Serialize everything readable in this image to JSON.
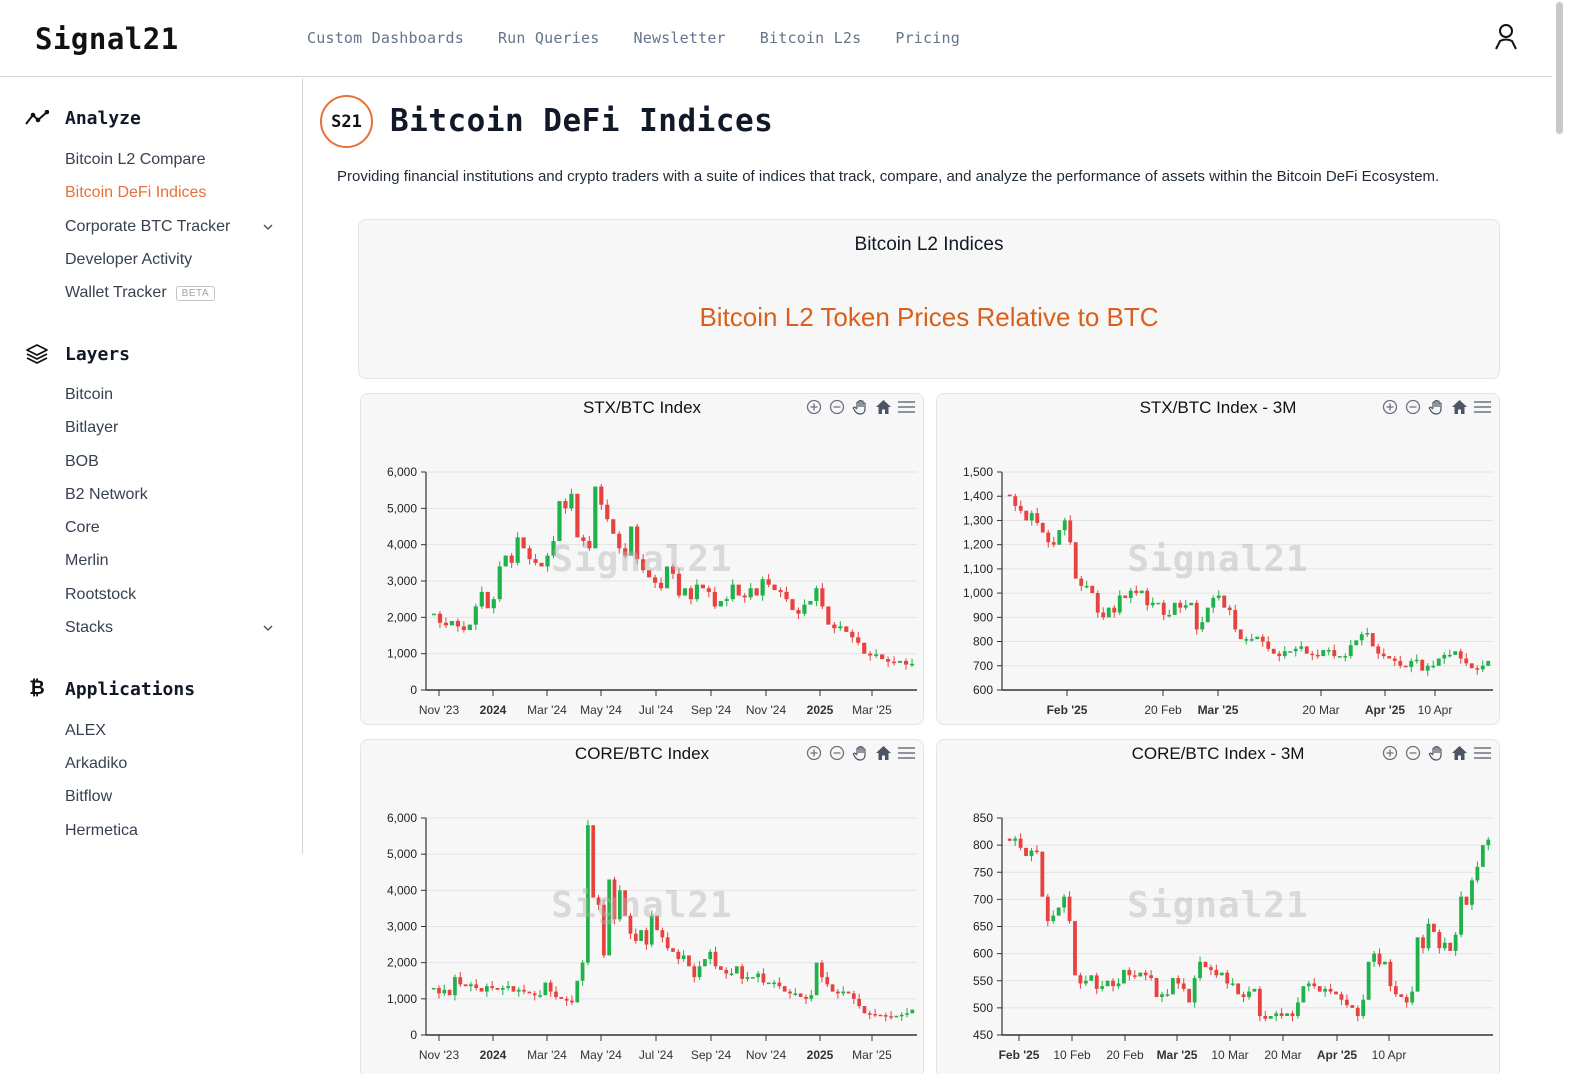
{
  "header": {
    "logo": "Signal21",
    "nav": [
      "Custom Dashboards",
      "Run Queries",
      "Newsletter",
      "Bitcoin L2s",
      "Pricing"
    ],
    "user_icon": "user-icon"
  },
  "sidebar": {
    "sections": [
      {
        "title": "Analyze",
        "icon": "trend-line-icon",
        "items": [
          {
            "label": "Bitcoin L2 Compare"
          },
          {
            "label": "Bitcoin DeFi Indices",
            "active": true
          },
          {
            "label": "Corporate BTC Tracker",
            "expandable": true
          },
          {
            "label": "Developer Activity"
          },
          {
            "label": "Wallet Tracker",
            "badge": "BETA"
          }
        ]
      },
      {
        "title": "Layers",
        "icon": "layers-icon",
        "items": [
          {
            "label": "Bitcoin"
          },
          {
            "label": "Bitlayer"
          },
          {
            "label": "BOB"
          },
          {
            "label": "B2 Network"
          },
          {
            "label": "Core"
          },
          {
            "label": "Merlin"
          },
          {
            "label": "Rootstock"
          },
          {
            "label": "Stacks",
            "expandable": true
          }
        ]
      },
      {
        "title": "Applications",
        "icon": "bitcoin-icon",
        "items": [
          {
            "label": "ALEX"
          },
          {
            "label": "Arkadiko"
          },
          {
            "label": "Bitflow"
          },
          {
            "label": "Hermetica"
          }
        ]
      }
    ]
  },
  "page": {
    "badge": "S21",
    "title": "Bitcoin DeFi Indices",
    "description": "Providing financial institutions and crypto traders with a suite of indices that track, compare, and analyze the performance of assets within the Bitcoin DeFi Ecosystem.",
    "hero_subtitle": "Bitcoin L2 Indices",
    "hero_title": "Bitcoin L2 Token Prices Relative to BTC",
    "watermark": "Signal21"
  },
  "colors": {
    "accent": "#e8703a",
    "hero_title": "#d9601c",
    "up": "#1fb14a",
    "down": "#e8423f"
  },
  "chart_data": [
    {
      "type": "candlestick",
      "title": "STX/BTC Index",
      "ylim": [
        0,
        6000
      ],
      "yticks": [
        0,
        1000,
        2000,
        3000,
        4000,
        5000,
        6000
      ],
      "xticks": [
        "Nov '23",
        "2024",
        "Mar '24",
        "May '24",
        "Jul '24",
        "Sep '24",
        "Nov '24",
        "2025",
        "Mar '25"
      ],
      "bold_xticks": [
        "2024",
        "2025"
      ],
      "grid": true,
      "series_close": [
        2100,
        1850,
        1780,
        1900,
        1750,
        1650,
        1800,
        2300,
        2700,
        2250,
        2500,
        3400,
        3700,
        3500,
        4200,
        3900,
        3600,
        3500,
        3400,
        3700,
        4100,
        5200,
        5000,
        5400,
        4200,
        4100,
        3900,
        5600,
        5100,
        4700,
        4300,
        3900,
        3700,
        4500,
        3600,
        3300,
        3100,
        2950,
        2800,
        3400,
        3200,
        2600,
        2800,
        2500,
        2900,
        2800,
        2700,
        2300,
        2450,
        2500,
        2900,
        2600,
        2550,
        2800,
        2600,
        3050,
        2900,
        2750,
        2700,
        2500,
        2200,
        2100,
        2350,
        2450,
        2800,
        2300,
        1800,
        1700,
        1750,
        1600,
        1450,
        1300,
        1000,
        950,
        980,
        850,
        780,
        750,
        800,
        700,
        720
      ]
    },
    {
      "type": "candlestick",
      "title": "STX/BTC Index - 3M",
      "ylim": [
        600,
        1500
      ],
      "yticks": [
        600,
        700,
        800,
        900,
        1000,
        1100,
        1200,
        1300,
        1400,
        1500
      ],
      "xticks": [
        "Feb '25",
        "20 Feb",
        "Mar '25",
        "20 Mar",
        "Apr '25",
        "10 Apr"
      ],
      "bold_xticks": [
        "Feb '25",
        "Mar '25",
        "Apr '25"
      ],
      "grid": true,
      "series_close": [
        1400,
        1360,
        1340,
        1300,
        1330,
        1290,
        1250,
        1210,
        1200,
        1260,
        1300,
        1210,
        1060,
        1030,
        1030,
        1000,
        920,
        900,
        940,
        920,
        990,
        980,
        1010,
        1000,
        1010,
        950,
        960,
        960,
        910,
        910,
        960,
        940,
        950,
        960,
        850,
        880,
        940,
        980,
        990,
        940,
        930,
        850,
        810,
        810,
        810,
        820,
        800,
        770,
        750,
        740,
        760,
        760,
        770,
        780,
        750,
        745,
        740,
        765,
        765,
        740,
        740,
        740,
        785,
        805,
        830,
        835,
        780,
        750,
        740,
        730,
        720,
        700,
        695,
        720,
        725,
        680,
        700,
        700,
        730,
        745,
        745,
        760,
        730,
        710,
        690,
        685,
        700,
        720
      ]
    },
    {
      "type": "candlestick",
      "title": "CORE/BTC Index",
      "ylim": [
        0,
        6000
      ],
      "yticks": [
        0,
        1000,
        2000,
        3000,
        4000,
        5000,
        6000
      ],
      "xticks": [
        "Nov '23",
        "2024",
        "Mar '24",
        "May '24",
        "Jul '24",
        "Sep '24",
        "Nov '24",
        "2025",
        "Mar '25"
      ],
      "bold_xticks": [
        "2024",
        "2025"
      ],
      "grid": true,
      "series_close": [
        1300,
        1150,
        1250,
        1100,
        1600,
        1400,
        1350,
        1400,
        1300,
        1200,
        1350,
        1300,
        1250,
        1300,
        1350,
        1200,
        1250,
        1200,
        1150,
        1100,
        1100,
        1450,
        1200,
        1050,
        1000,
        950,
        900,
        1500,
        2000,
        5800,
        3800,
        3600,
        2200,
        4300,
        3200,
        4000,
        3300,
        2800,
        2600,
        2900,
        2500,
        3300,
        2900,
        2700,
        2400,
        2300,
        2100,
        2200,
        1900,
        1600,
        1900,
        2100,
        2300,
        1900,
        1800,
        1700,
        1700,
        1900,
        1550,
        1600,
        1600,
        1700,
        1450,
        1450,
        1450,
        1350,
        1200,
        1150,
        1150,
        1050,
        1000,
        1100,
        2000,
        1600,
        1400,
        1200,
        1150,
        1200,
        1150,
        1000,
        800,
        600,
        580,
        560,
        550,
        520,
        500,
        530,
        560,
        600,
        700
      ]
    },
    {
      "type": "candlestick",
      "title": "CORE/BTC Index - 3M",
      "ylim": [
        450,
        850
      ],
      "yticks": [
        450,
        500,
        550,
        600,
        650,
        700,
        750,
        800,
        850
      ],
      "xticks": [
        "Feb '25",
        "10 Feb",
        "20 Feb",
        "Mar '25",
        "10 Mar",
        "20 Mar",
        "Apr '25",
        "10 Apr"
      ],
      "bold_xticks": [
        "Feb '25",
        "Mar '25",
        "Apr '25"
      ],
      "grid": true,
      "series_close": [
        808,
        812,
        795,
        780,
        790,
        788,
        705,
        660,
        670,
        685,
        705,
        660,
        560,
        545,
        550,
        560,
        535,
        540,
        550,
        540,
        545,
        570,
        560,
        558,
        565,
        560,
        555,
        520,
        525,
        525,
        555,
        545,
        535,
        510,
        555,
        585,
        575,
        570,
        560,
        565,
        545,
        545,
        525,
        520,
        530,
        535,
        485,
        480,
        485,
        490,
        485,
        490,
        485,
        510,
        540,
        545,
        540,
        530,
        535,
        530,
        525,
        515,
        505,
        500,
        485,
        515,
        585,
        600,
        580,
        585,
        540,
        525,
        520,
        510,
        530,
        630,
        610,
        655,
        640,
        610,
        620,
        605,
        635,
        705,
        690,
        735,
        760,
        800,
        810
      ]
    }
  ],
  "charts_toolbar": [
    "zoom-in-icon",
    "zoom-out-icon",
    "pan-hand-icon",
    "home-reset-icon",
    "menu-icon"
  ]
}
